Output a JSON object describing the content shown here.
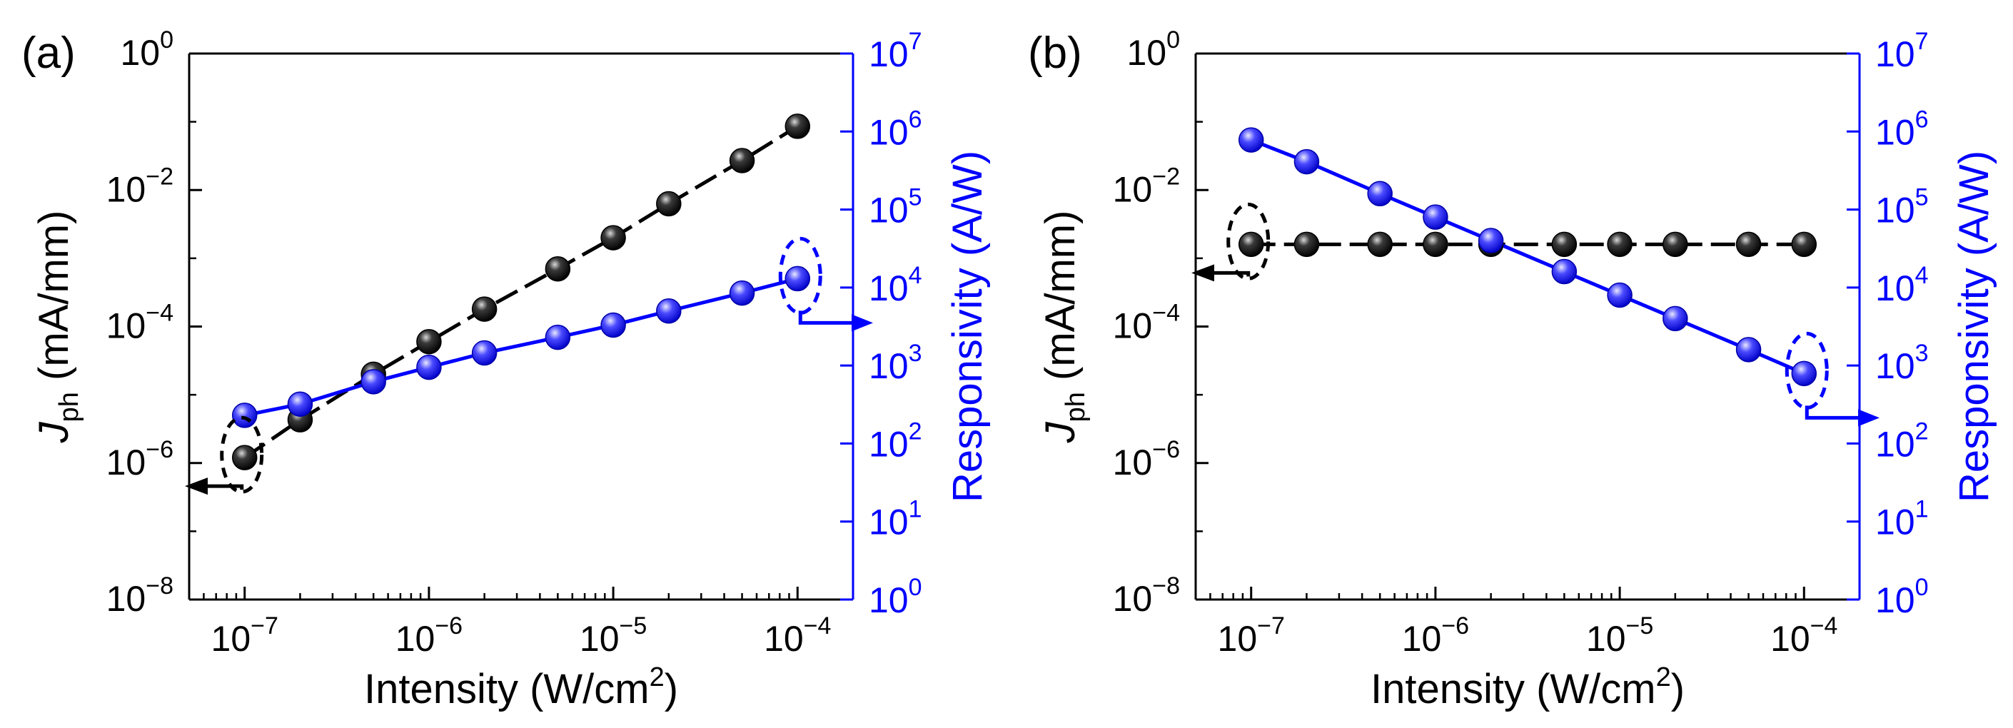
{
  "colors": {
    "left_axis": "#000000",
    "right_axis": "#0000ff",
    "jph_marker": "#000000",
    "jph_line": "#000000",
    "resp_marker": "#1a1aff",
    "resp_line": "#0000ff",
    "background": "#ffffff"
  },
  "chart_data": [
    {
      "panel_label": "(a)",
      "type": "scatter",
      "xscale": "log",
      "yscale": "log",
      "y2scale": "log",
      "xlim": [
        5e-08,
        0.0002
      ],
      "ylim": [
        1e-08,
        1
      ],
      "y2lim": [
        1,
        10000000.0
      ],
      "xticks": [
        {
          "base": "10",
          "exp": "−7"
        },
        {
          "base": "10",
          "exp": "−6"
        },
        {
          "base": "10",
          "exp": "−5"
        },
        {
          "base": "10",
          "exp": "−4"
        }
      ],
      "yticks": [
        {
          "base": "10",
          "exp": "−8"
        },
        {
          "base": "10",
          "exp": "−6"
        },
        {
          "base": "10",
          "exp": "−4"
        },
        {
          "base": "10",
          "exp": "−2"
        },
        {
          "base": "10",
          "exp": "0"
        }
      ],
      "y2ticks": [
        {
          "base": "10",
          "exp": "0"
        },
        {
          "base": "10",
          "exp": "1"
        },
        {
          "base": "10",
          "exp": "2"
        },
        {
          "base": "10",
          "exp": "3"
        },
        {
          "base": "10",
          "exp": "4"
        },
        {
          "base": "10",
          "exp": "5"
        },
        {
          "base": "10",
          "exp": "6"
        },
        {
          "base": "10",
          "exp": "7"
        }
      ],
      "xlabel": {
        "main": "Intensity (W/cm",
        "sup": "2",
        "tail": ")"
      },
      "ylabel": {
        "main": "J",
        "sub": "ph",
        "tail": " (mA/mm)"
      },
      "y2label": "Responsivity (A/W)",
      "series": [
        {
          "axis": "left",
          "x": [
            1e-07,
            2e-07,
            5e-07,
            1e-06,
            2e-06,
            5e-06,
            1e-05,
            2e-05,
            5e-05,
            0.0001
          ],
          "y": [
            1.2e-06,
            4.3e-06,
            2e-05,
            6e-05,
            0.00018,
            0.0007,
            0.002,
            0.0063,
            0.027,
            0.086
          ]
        },
        {
          "axis": "right",
          "x": [
            1e-07,
            2e-07,
            5e-07,
            1e-06,
            2e-06,
            5e-06,
            1e-05,
            2e-05,
            5e-05,
            0.0001
          ],
          "y": [
            230,
            320,
            620,
            950,
            1450,
            2300,
            3300,
            5000,
            8500,
            13000
          ]
        }
      ]
    },
    {
      "panel_label": "(b)",
      "type": "scatter",
      "xscale": "log",
      "yscale": "log",
      "y2scale": "log",
      "xlim": [
        5e-08,
        0.0002
      ],
      "ylim": [
        1e-08,
        1
      ],
      "y2lim": [
        1,
        10000000.0
      ],
      "xticks": [
        {
          "base": "10",
          "exp": "−7"
        },
        {
          "base": "10",
          "exp": "−6"
        },
        {
          "base": "10",
          "exp": "−5"
        },
        {
          "base": "10",
          "exp": "−4"
        }
      ],
      "yticks": [
        {
          "base": "10",
          "exp": "−8"
        },
        {
          "base": "10",
          "exp": "−6"
        },
        {
          "base": "10",
          "exp": "−4"
        },
        {
          "base": "10",
          "exp": "−2"
        },
        {
          "base": "10",
          "exp": "0"
        }
      ],
      "y2ticks": [
        {
          "base": "10",
          "exp": "0"
        },
        {
          "base": "10",
          "exp": "1"
        },
        {
          "base": "10",
          "exp": "2"
        },
        {
          "base": "10",
          "exp": "3"
        },
        {
          "base": "10",
          "exp": "4"
        },
        {
          "base": "10",
          "exp": "5"
        },
        {
          "base": "10",
          "exp": "6"
        },
        {
          "base": "10",
          "exp": "7"
        }
      ],
      "xlabel": {
        "main": "Intensity (W/cm",
        "sup": "2",
        "tail": ")"
      },
      "ylabel": {
        "main": "J",
        "sub": "ph",
        "tail": " (mA/mm)"
      },
      "y2label": "Responsivity (A/W)",
      "series": [
        {
          "axis": "left",
          "x": [
            1e-07,
            2e-07,
            5e-07,
            1e-06,
            2e-06,
            5e-06,
            1e-05,
            2e-05,
            5e-05,
            0.0001
          ],
          "y": [
            0.0016,
            0.0016,
            0.0016,
            0.0016,
            0.0016,
            0.0016,
            0.0016,
            0.0016,
            0.0016,
            0.0016
          ]
        },
        {
          "axis": "right",
          "x": [
            1e-07,
            2e-07,
            5e-07,
            1e-06,
            2e-06,
            5e-06,
            1e-05,
            2e-05,
            5e-05,
            0.0001
          ],
          "y": [
            780000,
            410000,
            160000,
            80000,
            40000,
            16000,
            8000,
            4000,
            1600,
            790
          ]
        }
      ]
    }
  ]
}
